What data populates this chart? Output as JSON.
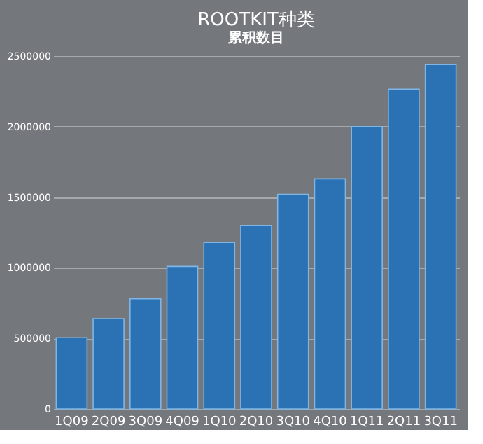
{
  "chart_data": {
    "type": "bar",
    "title": "ROOTKIT种类",
    "subtitle": "累积数目",
    "categories": [
      "1Q09",
      "2Q09",
      "3Q09",
      "4Q09",
      "1Q10",
      "2Q10",
      "3Q10",
      "4Q10",
      "1Q11",
      "2Q11",
      "3Q11"
    ],
    "values": [
      505000,
      640000,
      780000,
      1010000,
      1180000,
      1300000,
      1520000,
      1630000,
      2000000,
      2265000,
      2440000
    ],
    "color": "#2a72b3",
    "ylim": [
      0,
      2500000
    ],
    "yticks": [
      0,
      500000,
      1000000,
      1500000,
      2000000,
      2500000
    ],
    "grid": "y"
  }
}
